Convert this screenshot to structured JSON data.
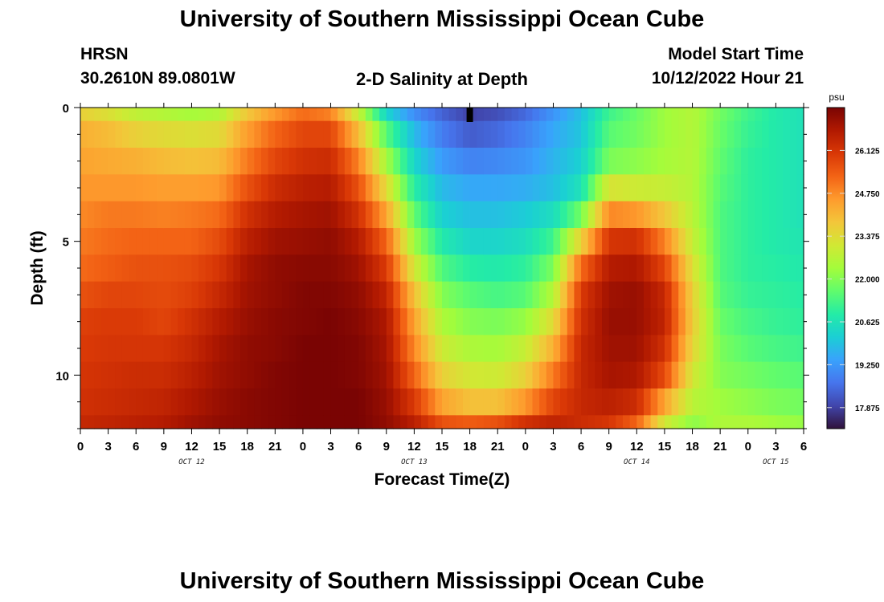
{
  "header": {
    "title": "University of Southern Mississippi Ocean Cube",
    "station": "HRSN",
    "coords": "30.2610N  89.0801W",
    "plot_title": "2-D Salinity at Depth",
    "model_start_label": "Model Start Time",
    "model_start_value": "10/12/2022 Hour 21"
  },
  "footer": {
    "title": "University of Southern Mississippi Ocean Cube"
  },
  "chart_data": {
    "type": "heatmap",
    "title": "2-D Salinity at Depth",
    "xlabel": "Forecast Time(Z)",
    "ylabel": "Depth (ft)",
    "x_hours_range": [
      0,
      78
    ],
    "x_tick_labels": [
      "0",
      "3",
      "6",
      "9",
      "12",
      "15",
      "18",
      "21",
      "0",
      "3",
      "6",
      "9",
      "12",
      "15",
      "18",
      "21",
      "0",
      "3",
      "6",
      "9",
      "12",
      "15",
      "18",
      "21",
      "0",
      "3",
      "6"
    ],
    "date_labels": [
      {
        "label": "OCT 12",
        "hour": 12
      },
      {
        "label": "OCT 13",
        "hour": 36
      },
      {
        "label": "OCT 14",
        "hour": 60
      },
      {
        "label": "OCT 15",
        "hour": 75
      }
    ],
    "y_range": [
      0,
      12
    ],
    "y_ticks": [
      0,
      5,
      10
    ],
    "depth_levels": [
      0,
      1,
      2,
      3,
      4,
      5,
      6,
      7,
      8,
      9,
      10,
      11,
      12
    ],
    "current_time_hour": 42,
    "colorbar": {
      "unit": "psu",
      "min": 17.2,
      "max": 27.5,
      "tick_labels": [
        "26.125",
        "24.750",
        "23.375",
        "22.000",
        "20.625",
        "19.250",
        "17.875"
      ],
      "tick_values": [
        26.125,
        24.75,
        23.375,
        22.0,
        20.625,
        19.25,
        17.875
      ],
      "colormap": [
        "#30123b",
        "#4145ab",
        "#4675ed",
        "#39a2fc",
        "#1bcfd4",
        "#24eca6",
        "#61fc6c",
        "#a4fc3b",
        "#d1e834",
        "#f3c63a",
        "#fe9b2d",
        "#f36315",
        "#d93806",
        "#b11901",
        "#7a0403"
      ]
    },
    "profiles": [
      {
        "hour": 0,
        "values": [
          23.6,
          24.2,
          24.4,
          24.6,
          24.8,
          25.0,
          25.2,
          25.6,
          25.9,
          26.0,
          26.1,
          26.2,
          26.4
        ]
      },
      {
        "hour": 3,
        "values": [
          23.3,
          24.0,
          24.3,
          24.6,
          25.0,
          25.2,
          25.4,
          25.8,
          26.0,
          26.1,
          26.2,
          26.3,
          26.5
        ]
      },
      {
        "hour": 6,
        "values": [
          22.8,
          23.6,
          24.2,
          24.6,
          25.0,
          25.3,
          25.6,
          25.8,
          26.0,
          26.1,
          26.3,
          26.4,
          26.6
        ]
      },
      {
        "hour": 9,
        "values": [
          22.6,
          23.4,
          24.0,
          24.5,
          24.9,
          25.3,
          25.6,
          25.7,
          25.8,
          26.1,
          26.3,
          26.5,
          26.7
        ]
      },
      {
        "hour": 12,
        "values": [
          22.4,
          23.3,
          23.9,
          24.5,
          25.0,
          25.3,
          25.7,
          25.9,
          26.2,
          26.4,
          26.6,
          26.8,
          27.0
        ]
      },
      {
        "hour": 15,
        "values": [
          22.6,
          23.4,
          24.0,
          24.6,
          25.2,
          25.7,
          26.1,
          26.4,
          26.7,
          26.9,
          27.0,
          27.1,
          27.2
        ]
      },
      {
        "hour": 18,
        "values": [
          23.8,
          24.5,
          25.0,
          25.6,
          26.2,
          26.6,
          26.9,
          27.0,
          27.1,
          27.2,
          27.2,
          27.3,
          27.3
        ]
      },
      {
        "hour": 21,
        "values": [
          24.6,
          25.3,
          25.8,
          26.3,
          26.7,
          27.0,
          27.2,
          27.2,
          27.3,
          27.3,
          27.4,
          27.4,
          27.4
        ]
      },
      {
        "hour": 24,
        "values": [
          25.2,
          25.8,
          26.2,
          26.6,
          26.9,
          27.1,
          27.3,
          27.4,
          27.4,
          27.5,
          27.5,
          27.5,
          27.5
        ]
      },
      {
        "hour": 27,
        "values": [
          24.9,
          25.8,
          26.3,
          26.7,
          27.0,
          27.2,
          27.3,
          27.4,
          27.5,
          27.5,
          27.5,
          27.5,
          27.5
        ]
      },
      {
        "hour": 30,
        "values": [
          22.9,
          24.0,
          24.9,
          25.6,
          26.2,
          26.7,
          27.0,
          27.2,
          27.3,
          27.4,
          27.4,
          27.5,
          27.5
        ]
      },
      {
        "hour": 33,
        "values": [
          20.3,
          21.5,
          22.4,
          23.4,
          24.4,
          25.3,
          26.0,
          26.5,
          26.8,
          26.9,
          27.0,
          27.1,
          27.2
        ]
      },
      {
        "hour": 36,
        "values": [
          19.1,
          19.8,
          20.3,
          20.9,
          21.6,
          22.3,
          23.1,
          23.9,
          24.4,
          24.8,
          25.3,
          26.0,
          26.6
        ]
      },
      {
        "hour": 39,
        "values": [
          18.4,
          18.8,
          19.3,
          19.8,
          20.2,
          20.8,
          21.4,
          22.0,
          22.5,
          23.0,
          23.6,
          24.4,
          25.6
        ]
      },
      {
        "hour": 42,
        "values": [
          17.9,
          18.3,
          18.9,
          19.5,
          19.9,
          20.3,
          20.9,
          21.5,
          22.0,
          22.5,
          23.1,
          23.9,
          25.4
        ]
      },
      {
        "hour": 45,
        "values": [
          18.1,
          18.5,
          19.0,
          19.5,
          19.9,
          20.3,
          20.8,
          21.3,
          21.9,
          22.4,
          23.0,
          23.9,
          25.6
        ]
      },
      {
        "hour": 48,
        "values": [
          18.5,
          18.9,
          19.2,
          19.6,
          20.1,
          20.5,
          21.0,
          21.5,
          22.2,
          22.9,
          23.6,
          24.6,
          26.2
        ]
      },
      {
        "hour": 51,
        "values": [
          19.2,
          19.5,
          19.7,
          19.9,
          20.5,
          21.2,
          21.9,
          22.6,
          23.4,
          24.2,
          25.0,
          25.8,
          26.5
        ]
      },
      {
        "hour": 54,
        "values": [
          19.9,
          20.0,
          20.2,
          20.6,
          21.8,
          23.6,
          25.2,
          26.0,
          26.2,
          26.4,
          26.4,
          26.4,
          26.3
        ]
      },
      {
        "hour": 57,
        "values": [
          21.2,
          21.5,
          21.9,
          23.2,
          24.8,
          26.1,
          26.7,
          27.0,
          27.1,
          27.0,
          26.9,
          26.6,
          26.1
        ]
      },
      {
        "hour": 60,
        "values": [
          21.7,
          21.8,
          22.1,
          23.0,
          24.6,
          26.2,
          26.8,
          27.1,
          27.1,
          27.0,
          26.8,
          26.3,
          25.3
        ]
      },
      {
        "hour": 63,
        "values": [
          22.3,
          22.3,
          22.4,
          22.9,
          23.8,
          24.9,
          25.8,
          26.4,
          26.5,
          26.2,
          25.7,
          24.4,
          23.1
        ]
      },
      {
        "hour": 66,
        "values": [
          22.6,
          22.6,
          22.6,
          22.6,
          22.7,
          22.9,
          23.3,
          23.6,
          23.7,
          23.5,
          23.1,
          22.7,
          22.1
        ]
      },
      {
        "hour": 69,
        "values": [
          21.8,
          21.7,
          21.6,
          21.5,
          21.4,
          21.4,
          21.4,
          21.5,
          21.7,
          21.9,
          22.0,
          22.3,
          22.5
        ]
      },
      {
        "hour": 72,
        "values": [
          21.2,
          21.1,
          21.0,
          21.0,
          21.0,
          21.0,
          21.0,
          21.1,
          21.3,
          21.5,
          21.8,
          22.1,
          22.5
        ]
      },
      {
        "hour": 75,
        "values": [
          20.8,
          20.8,
          20.8,
          20.8,
          20.8,
          20.8,
          20.9,
          21.0,
          21.1,
          21.3,
          21.6,
          21.9,
          22.3
        ]
      },
      {
        "hour": 78,
        "values": [
          20.6,
          20.6,
          20.6,
          20.6,
          20.6,
          20.7,
          20.8,
          20.9,
          21.0,
          21.2,
          21.5,
          21.8,
          22.2
        ]
      }
    ]
  }
}
